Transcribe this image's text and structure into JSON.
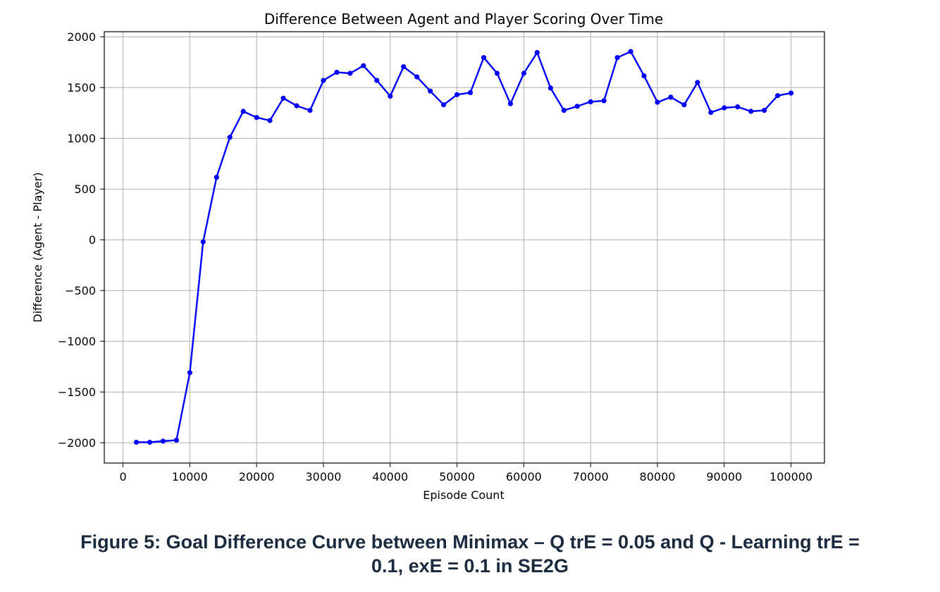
{
  "chart_data": {
    "type": "line",
    "title": "Difference Between Agent and Player Scoring Over Time",
    "xlabel": "Episode Count",
    "ylabel": "Difference (Agent - Player)",
    "xlim": [
      -2800,
      105000
    ],
    "ylim": [
      -2200,
      2050
    ],
    "xticks": [
      0,
      10000,
      20000,
      30000,
      40000,
      50000,
      60000,
      70000,
      80000,
      90000,
      100000
    ],
    "xtick_labels": [
      "0",
      "10000",
      "20000",
      "30000",
      "40000",
      "50000",
      "60000",
      "70000",
      "80000",
      "90000",
      "100000"
    ],
    "yticks": [
      2000,
      1500,
      1000,
      500,
      0,
      -500,
      -1000,
      -1500,
      -2000
    ],
    "ytick_labels": [
      "2000",
      "1500",
      "1000",
      "500",
      "0",
      "−500",
      "−1000",
      "−1500",
      "−2000"
    ],
    "grid": true,
    "series": [
      {
        "color": "#0000ff",
        "marker": "circle",
        "x": [
          2000,
          4000,
          6000,
          8000,
          10000,
          12000,
          14000,
          16000,
          18000,
          20000,
          22000,
          24000,
          26000,
          28000,
          30000,
          32000,
          34000,
          36000,
          38000,
          40000,
          42000,
          44000,
          46000,
          48000,
          50000,
          52000,
          54000,
          56000,
          58000,
          60000,
          62000,
          64000,
          66000,
          68000,
          70000,
          72000,
          74000,
          76000,
          78000,
          80000,
          82000,
          84000,
          86000,
          88000,
          90000,
          92000,
          94000,
          96000,
          98000,
          100000
        ],
        "y": [
          -1995,
          -1995,
          -1985,
          -1975,
          -1310,
          -20,
          615,
          1010,
          1265,
          1205,
          1175,
          1395,
          1320,
          1275,
          1570,
          1650,
          1640,
          1715,
          1570,
          1415,
          1705,
          1605,
          1465,
          1330,
          1430,
          1450,
          1795,
          1640,
          1340,
          1640,
          1845,
          1495,
          1275,
          1315,
          1360,
          1370,
          1795,
          1855,
          1615,
          1355,
          1405,
          1330,
          1550,
          1255,
          1300,
          1310,
          1265,
          1275,
          1420,
          1445
        ]
      }
    ]
  },
  "caption": {
    "line1": "Figure 5: Goal Difference Curve between Minimax – Q trE = 0.05 and Q - Learning trE =",
    "line2": "0.1, exE = 0.1 in SE2G"
  }
}
